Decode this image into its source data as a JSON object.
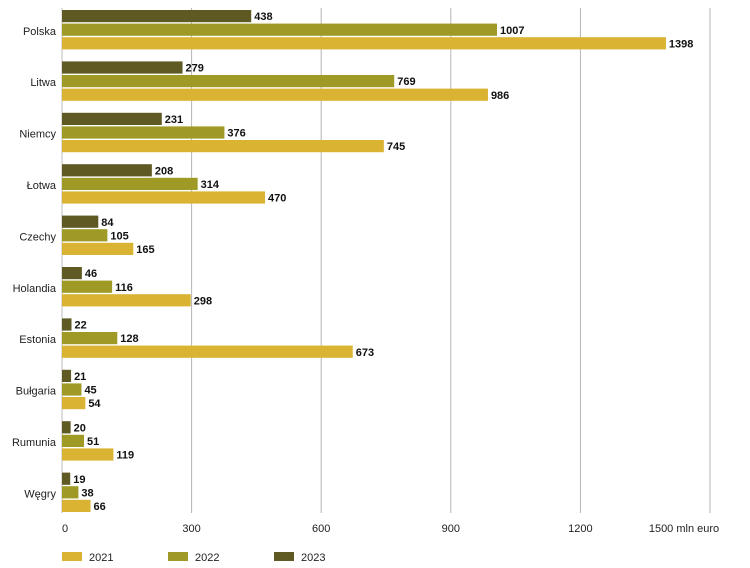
{
  "chart_data": {
    "type": "bar",
    "orientation": "horizontal",
    "categories": [
      "Polska",
      "Litwa",
      "Niemcy",
      "Łotwa",
      "Czechy",
      "Holandia",
      "Estonia",
      "Bułgaria",
      "Rumunia",
      "Węgry"
    ],
    "series": [
      {
        "name": "2023",
        "color": "#5f5a24",
        "values": [
          438,
          279,
          231,
          208,
          84,
          46,
          22,
          21,
          20,
          19
        ]
      },
      {
        "name": "2022",
        "color": "#9e9a25",
        "values": [
          1007,
          769,
          376,
          314,
          105,
          116,
          128,
          45,
          51,
          38
        ]
      },
      {
        "name": "2021",
        "color": "#dab332",
        "values": [
          1398,
          986,
          745,
          470,
          165,
          298,
          673,
          54,
          119,
          66
        ]
      }
    ],
    "xlim": [
      0,
      1500
    ],
    "xticks": [
      "0",
      "300",
      "600",
      "900",
      "1200",
      "1500 mln euro"
    ],
    "legend": [
      "2021",
      "2022",
      "2023"
    ],
    "legend_position": "bottom-left",
    "grid": "vertical"
  }
}
